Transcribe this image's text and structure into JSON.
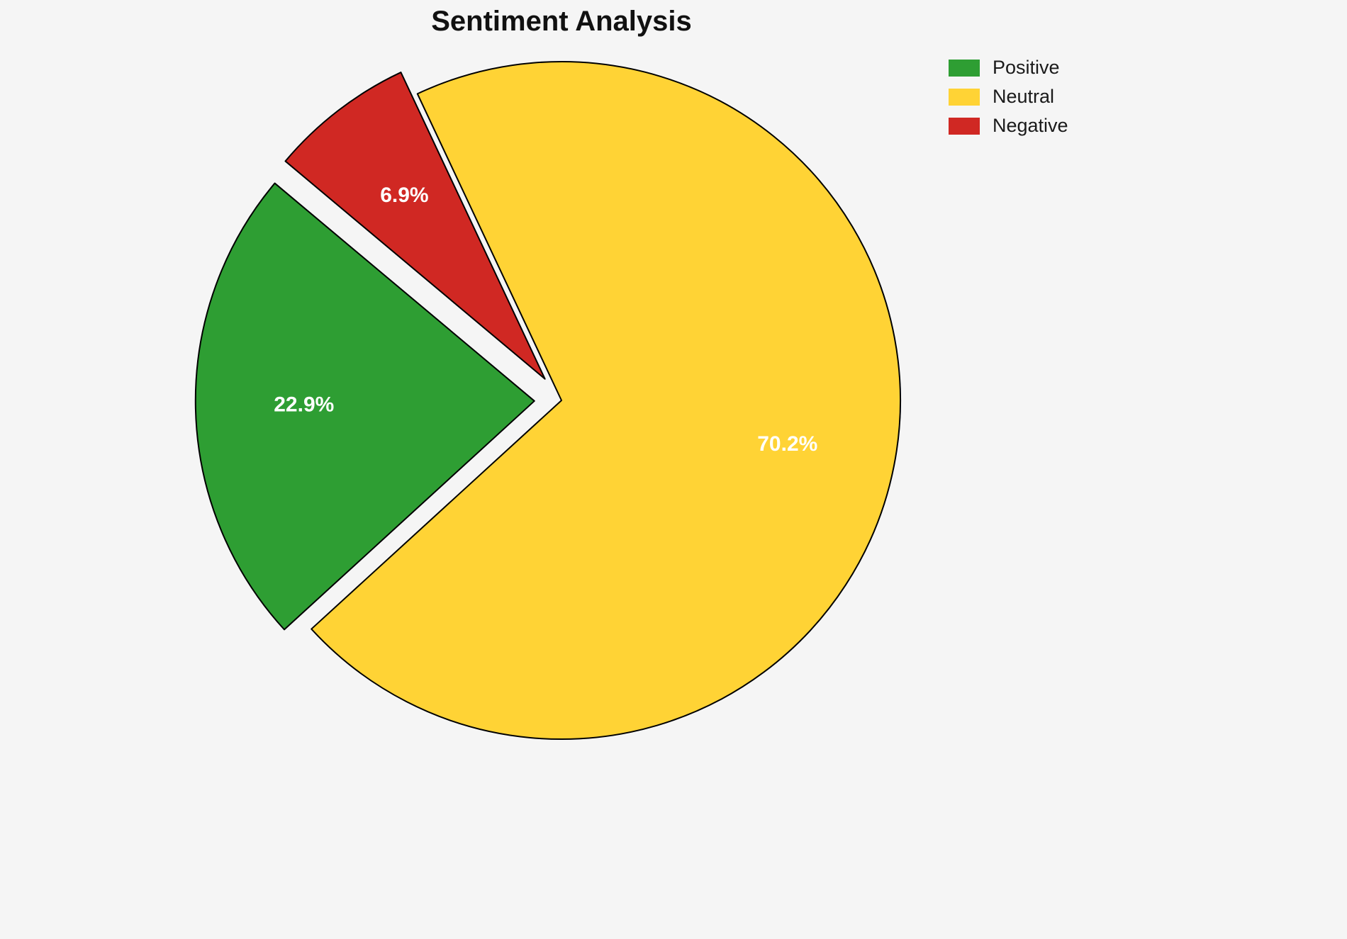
{
  "page": {
    "background": "#f5f5f5"
  },
  "chart_data": {
    "type": "pie",
    "title": "Sentiment Analysis",
    "categories": [
      "Positive",
      "Neutral",
      "Negative"
    ],
    "values": [
      22.9,
      70.2,
      6.9
    ],
    "labels": [
      "22.9%",
      "70.2%",
      "6.9%"
    ],
    "colors": [
      "#2e9e33",
      "#ffd335",
      "#d02823"
    ],
    "edge_color": "#000000",
    "label_color": "#ffffff",
    "start_angle": 140,
    "direction": "counterclockwise",
    "explode": [
      0.08,
      0,
      0.08
    ],
    "legend": {
      "position": "upper right",
      "entries": [
        "Positive",
        "Neutral",
        "Negative"
      ]
    }
  }
}
